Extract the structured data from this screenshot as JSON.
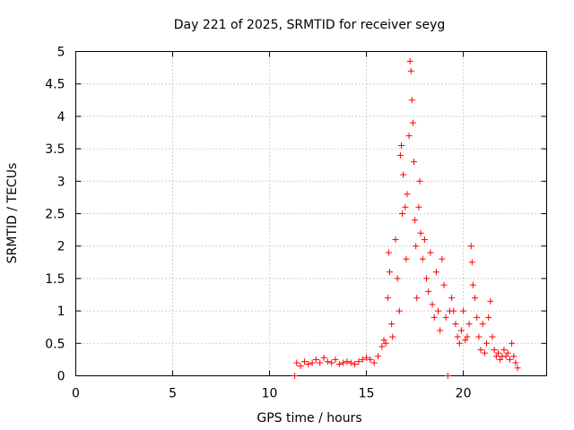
{
  "chart_data": {
    "type": "scatter",
    "title": "Day 221 of 2025, SRMTID for receiver seyg",
    "xlabel": "GPS time / hours",
    "ylabel": "SRMTID / TECUs",
    "xlim": [
      0,
      24.3
    ],
    "ylim": [
      0,
      5
    ],
    "grid": true,
    "marker": "+",
    "marker_color": "#ff0000",
    "x_ticks": [
      {
        "value": 0,
        "label": "0"
      },
      {
        "value": 5,
        "label": "5"
      },
      {
        "value": 10,
        "label": "10"
      },
      {
        "value": 15,
        "label": "15"
      },
      {
        "value": 20,
        "label": "20"
      }
    ],
    "y_ticks": [
      {
        "value": 0,
        "label": "0"
      },
      {
        "value": 0.5,
        "label": "0.5"
      },
      {
        "value": 1,
        "label": "1"
      },
      {
        "value": 1.5,
        "label": "1.5"
      },
      {
        "value": 2,
        "label": "2"
      },
      {
        "value": 2.5,
        "label": "2.5"
      },
      {
        "value": 3,
        "label": "3"
      },
      {
        "value": 3.5,
        "label": "3.5"
      },
      {
        "value": 4,
        "label": "4"
      },
      {
        "value": 4.5,
        "label": "4.5"
      },
      {
        "value": 5,
        "label": "5"
      }
    ],
    "series": [
      {
        "name": "SRMTID",
        "points": [
          [
            11.3,
            0.0
          ],
          [
            19.2,
            0.0
          ],
          [
            11.4,
            0.2
          ],
          [
            11.6,
            0.15
          ],
          [
            11.8,
            0.22
          ],
          [
            12.0,
            0.18
          ],
          [
            12.2,
            0.2
          ],
          [
            12.4,
            0.25
          ],
          [
            12.6,
            0.2
          ],
          [
            12.8,
            0.28
          ],
          [
            13.0,
            0.22
          ],
          [
            13.2,
            0.2
          ],
          [
            13.4,
            0.25
          ],
          [
            13.6,
            0.18
          ],
          [
            13.8,
            0.2
          ],
          [
            14.0,
            0.22
          ],
          [
            14.2,
            0.2
          ],
          [
            14.4,
            0.18
          ],
          [
            14.6,
            0.22
          ],
          [
            14.8,
            0.25
          ],
          [
            15.0,
            0.28
          ],
          [
            15.2,
            0.25
          ],
          [
            15.4,
            0.2
          ],
          [
            15.6,
            0.3
          ],
          [
            15.8,
            0.45
          ],
          [
            15.9,
            0.55
          ],
          [
            16.0,
            0.5
          ],
          [
            16.1,
            1.2
          ],
          [
            16.15,
            1.9
          ],
          [
            16.2,
            1.6
          ],
          [
            16.3,
            0.8
          ],
          [
            16.35,
            0.6
          ],
          [
            16.5,
            2.1
          ],
          [
            16.6,
            1.5
          ],
          [
            16.7,
            1.0
          ],
          [
            16.75,
            3.4
          ],
          [
            16.8,
            3.55
          ],
          [
            16.85,
            2.5
          ],
          [
            16.9,
            3.1
          ],
          [
            17.0,
            2.6
          ],
          [
            17.05,
            1.8
          ],
          [
            17.1,
            2.8
          ],
          [
            17.2,
            3.7
          ],
          [
            17.25,
            4.85
          ],
          [
            17.3,
            4.7
          ],
          [
            17.35,
            4.25
          ],
          [
            17.4,
            3.9
          ],
          [
            17.45,
            3.3
          ],
          [
            17.5,
            2.4
          ],
          [
            17.55,
            2.0
          ],
          [
            17.6,
            1.2
          ],
          [
            17.7,
            2.6
          ],
          [
            17.75,
            3.0
          ],
          [
            17.8,
            2.2
          ],
          [
            17.9,
            1.8
          ],
          [
            18.0,
            2.1
          ],
          [
            18.1,
            1.5
          ],
          [
            18.2,
            1.3
          ],
          [
            18.3,
            1.9
          ],
          [
            18.4,
            1.1
          ],
          [
            18.5,
            0.9
          ],
          [
            18.6,
            1.6
          ],
          [
            18.7,
            1.0
          ],
          [
            18.8,
            0.7
          ],
          [
            18.9,
            1.8
          ],
          [
            19.0,
            1.4
          ],
          [
            19.1,
            0.9
          ],
          [
            19.3,
            1.0
          ],
          [
            19.4,
            1.2
          ],
          [
            19.5,
            1.0
          ],
          [
            19.6,
            0.8
          ],
          [
            19.7,
            0.6
          ],
          [
            19.8,
            0.5
          ],
          [
            19.9,
            0.7
          ],
          [
            20.0,
            1.0
          ],
          [
            20.1,
            0.55
          ],
          [
            20.2,
            0.6
          ],
          [
            20.3,
            0.8
          ],
          [
            20.4,
            2.0
          ],
          [
            20.45,
            1.75
          ],
          [
            20.5,
            1.4
          ],
          [
            20.6,
            1.2
          ],
          [
            20.7,
            0.9
          ],
          [
            20.8,
            0.6
          ],
          [
            20.9,
            0.4
          ],
          [
            21.0,
            0.8
          ],
          [
            21.1,
            0.35
          ],
          [
            21.2,
            0.5
          ],
          [
            21.3,
            0.9
          ],
          [
            21.4,
            1.15
          ],
          [
            21.5,
            0.6
          ],
          [
            21.6,
            0.4
          ],
          [
            21.7,
            0.3
          ],
          [
            21.8,
            0.35
          ],
          [
            21.9,
            0.25
          ],
          [
            22.0,
            0.3
          ],
          [
            22.1,
            0.4
          ],
          [
            22.2,
            0.3
          ],
          [
            22.3,
            0.35
          ],
          [
            22.4,
            0.25
          ],
          [
            22.5,
            0.5
          ],
          [
            22.6,
            0.3
          ],
          [
            22.7,
            0.2
          ],
          [
            22.8,
            0.12
          ]
        ]
      }
    ]
  }
}
